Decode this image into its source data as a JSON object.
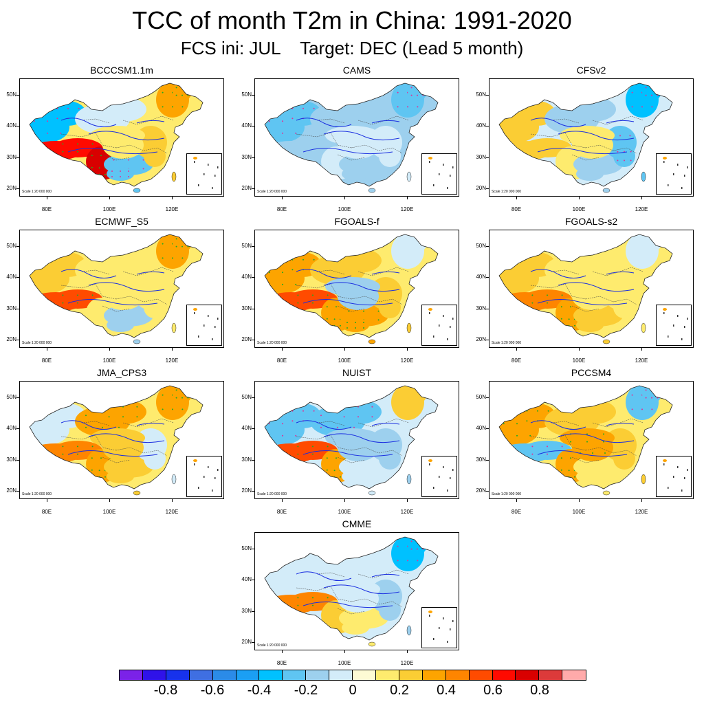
{
  "figure": {
    "title": "TCC of month T2m in China: 1991-2020",
    "subtitle": "FCS ini: JUL    Target: DEC (Lead 5 month)"
  },
  "axes": {
    "lat_labels": [
      "50N",
      "40N",
      "30N",
      "20N"
    ],
    "lon_labels": [
      "80E",
      "100E",
      "120E"
    ],
    "scale_text": "Scale 1:20 000 000"
  },
  "panels": [
    {
      "name": "BCCCSM1.1m",
      "regions": {
        "northwest": -0.4,
        "north": -0.1,
        "northeast": 0.3,
        "tibet": 0.6,
        "southwest": 0.7,
        "south": -0.3,
        "east": 0.2,
        "central": 0.1
      }
    },
    {
      "name": "CAMS",
      "regions": {
        "northwest": -0.3,
        "north": -0.2,
        "northeast": -0.3,
        "tibet": -0.2,
        "southwest": -0.1,
        "south": -0.2,
        "east": -0.1,
        "central": -0.1
      }
    },
    {
      "name": "CFSv2",
      "regions": {
        "northwest": 0.2,
        "north": -0.2,
        "northeast": -0.4,
        "tibet": 0.2,
        "southwest": 0.1,
        "south": -0.2,
        "east": -0.3,
        "central": 0.1
      }
    },
    {
      "name": "ECMWF_S5",
      "regions": {
        "northwest": 0.2,
        "north": 0.1,
        "northeast": 0.3,
        "tibet": 0.5,
        "southwest": 0.1,
        "south": -0.2,
        "east": 0.1,
        "central": 0.1
      }
    },
    {
      "name": "FGOALS-f",
      "regions": {
        "northwest": 0.3,
        "north": 0.2,
        "northeast": -0.1,
        "tibet": 0.5,
        "southwest": 0.3,
        "south": 0.3,
        "east": 0.2,
        "central": -0.2
      }
    },
    {
      "name": "FGOALS-s2",
      "regions": {
        "northwest": 0.2,
        "north": 0.1,
        "northeast": -0.1,
        "tibet": 0.4,
        "southwest": 0.3,
        "south": 0.2,
        "east": 0.1,
        "central": 0.1
      }
    },
    {
      "name": "JMA_CPS3",
      "regions": {
        "northwest": -0.1,
        "north": 0.3,
        "northeast": 0.3,
        "tibet": 0.4,
        "southwest": 0.3,
        "south": 0.2,
        "east": -0.1,
        "central": 0.2
      }
    },
    {
      "name": "NUIST",
      "regions": {
        "northwest": -0.3,
        "north": -0.3,
        "northeast": 0.2,
        "tibet": 0.5,
        "southwest": 0.3,
        "south": -0.1,
        "east": -0.2,
        "central": -0.2
      }
    },
    {
      "name": "PCCSM4",
      "regions": {
        "northwest": 0.3,
        "north": 0.2,
        "northeast": -0.3,
        "tibet": -0.3,
        "southwest": 0.3,
        "south": 0.1,
        "east": 0.2,
        "central": 0.3
      }
    },
    {
      "name": "CMME",
      "regions": {
        "northwest": -0.1,
        "north": -0.1,
        "northeast": -0.4,
        "tibet": 0.4,
        "southwest": 0.2,
        "south": 0.1,
        "east": -0.2,
        "central": -0.1
      }
    }
  ],
  "colorbar": {
    "colors": [
      "#7b22e8",
      "#2f12e9",
      "#1732ec",
      "#3f6fe2",
      "#2b8be8",
      "#1b9ff4",
      "#00c1ff",
      "#5fc5f2",
      "#9dd0ee",
      "#d3ecf9",
      "#fdfbd4",
      "#feeb6e",
      "#fbcd34",
      "#fda400",
      "#fe8500",
      "#ff4b00",
      "#ff0a00",
      "#d90000",
      "#dc3a3a",
      "#ffaaaa"
    ],
    "labels": [
      "-0.8",
      "-0.6",
      "-0.4",
      "-0.2",
      "0",
      "0.2",
      "0.4",
      "0.6",
      "0.8"
    ],
    "label_values": [
      -0.8,
      -0.6,
      -0.4,
      -0.2,
      0,
      0.2,
      0.4,
      0.6,
      0.8
    ],
    "min": -1.0,
    "max": 1.0
  }
}
